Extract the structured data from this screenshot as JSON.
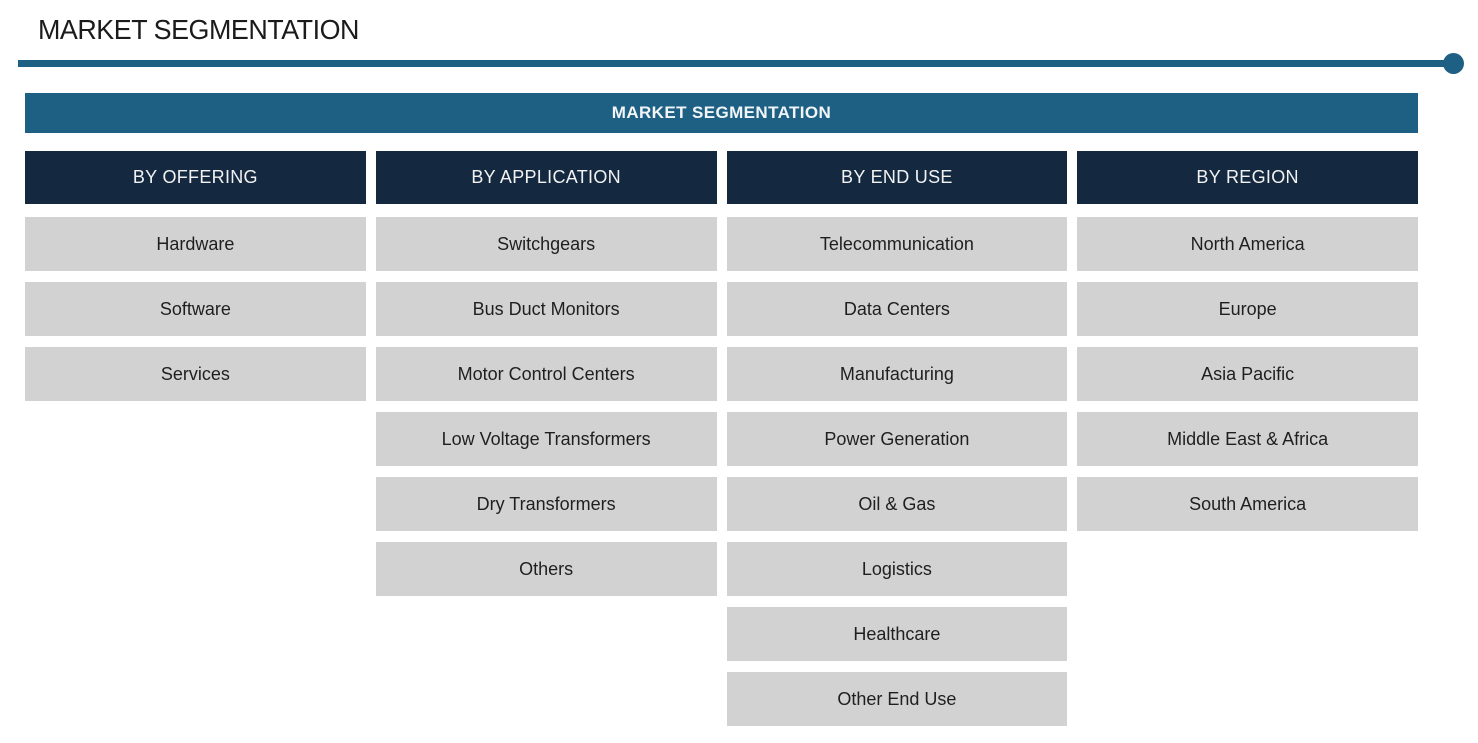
{
  "page": {
    "title": "MARKET SEGMENTATION"
  },
  "banner": {
    "label": "MARKET SEGMENTATION"
  },
  "colors": {
    "teal": "#1e6084",
    "navy_header": "#142940",
    "item_background": "#d2d2d2",
    "item_text": "#1f1f1f",
    "banner_text": "#f2f5f7"
  },
  "columns": [
    {
      "header": "BY OFFERING",
      "items": [
        "Hardware",
        "Software",
        "Services"
      ]
    },
    {
      "header": "BY APPLICATION",
      "items": [
        "Switchgears",
        "Bus Duct Monitors",
        "Motor Control Centers",
        "Low Voltage Transformers",
        "Dry Transformers",
        "Others"
      ]
    },
    {
      "header": "BY END USE",
      "items": [
        "Telecommunication",
        "Data Centers",
        "Manufacturing",
        "Power Generation",
        "Oil & Gas",
        "Logistics",
        "Healthcare",
        "Other End Use"
      ]
    },
    {
      "header": "BY REGION",
      "items": [
        "North America",
        "Europe",
        "Asia Pacific",
        "Middle East & Africa",
        "South America"
      ]
    }
  ]
}
